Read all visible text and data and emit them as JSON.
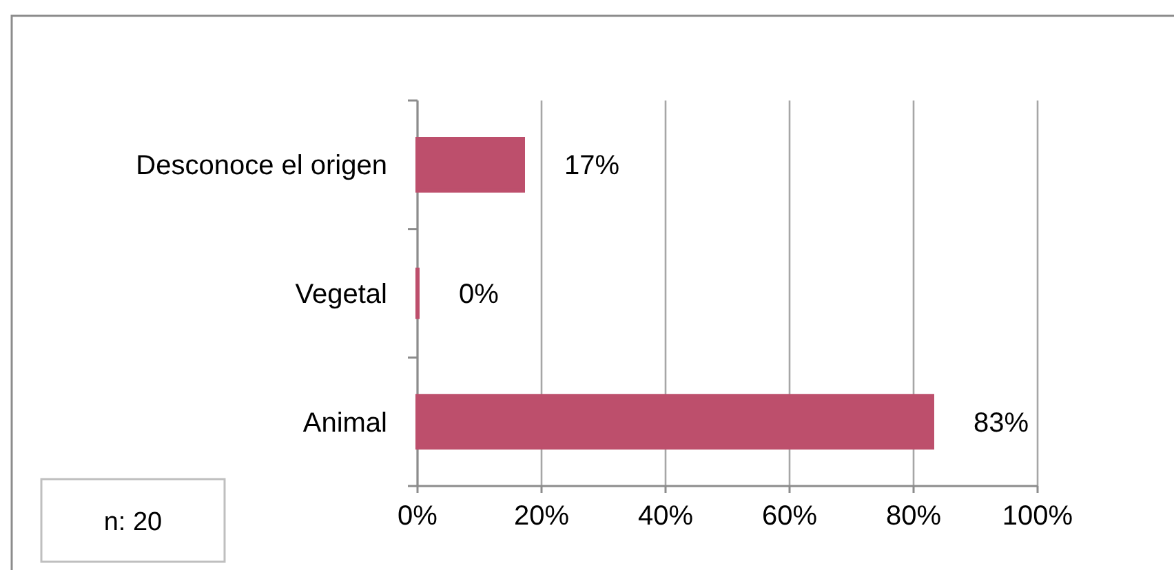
{
  "chart_data": {
    "type": "bar",
    "orientation": "horizontal",
    "categories": [
      "Desconoce el origen",
      "Vegetal",
      "Animal"
    ],
    "values": [
      17,
      0,
      83
    ],
    "value_labels": [
      "17%",
      "0%",
      "83%"
    ],
    "color": "#bd4f6c",
    "xlim": [
      0,
      100
    ],
    "xticks": [
      {
        "value": 0,
        "label": "0%"
      },
      {
        "value": 20,
        "label": "20%"
      },
      {
        "value": 40,
        "label": "40%"
      },
      {
        "value": 60,
        "label": "60%"
      },
      {
        "value": 80,
        "label": "80%"
      },
      {
        "value": 100,
        "label": "100%"
      }
    ],
    "grid": "x",
    "annotations": [
      "n: 20"
    ]
  }
}
